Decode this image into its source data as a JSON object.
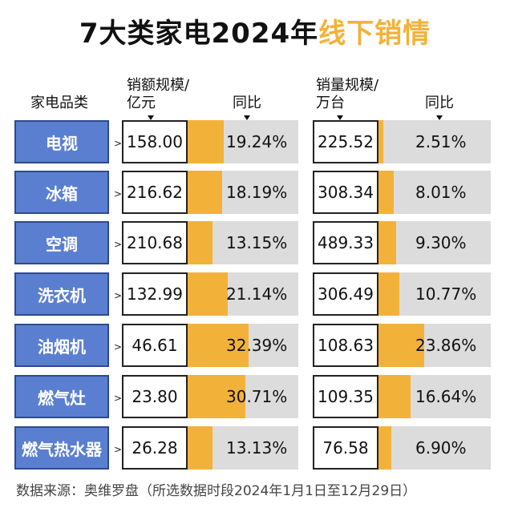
{
  "title": {
    "main": "7大类家电2024年",
    "highlight": "线下销情"
  },
  "headers": {
    "category": "家电品类",
    "sales_value": "销额规模/亿元",
    "sales_value_line1": "销额规模/",
    "sales_value_line2": "亿元",
    "yoy1": "同比",
    "sales_volume_line1": "销量规模/",
    "sales_volume_line2": "万台",
    "yoy2": "同比"
  },
  "footer": "数据来源：奥维罗盘（所选数据时段2024年1月1日至12月29日）",
  "chart_data": {
    "type": "table",
    "title": "7大类家电2024年线下销情",
    "categories": [
      "电视",
      "冰箱",
      "空调",
      "洗衣机",
      "油烟机",
      "燃气灶",
      "燃气热水器"
    ],
    "columns": [
      "销额规模/亿元",
      "同比",
      "销量规模/万台",
      "同比"
    ],
    "series": [
      {
        "name": "销额规模/亿元",
        "values": [
          158.0,
          216.62,
          210.68,
          132.99,
          46.61,
          23.8,
          26.28
        ]
      },
      {
        "name": "销额同比(%)",
        "values": [
          19.24,
          18.19,
          13.15,
          21.14,
          32.39,
          30.71,
          13.13
        ]
      },
      {
        "name": "销量规模/万台",
        "values": [
          225.52,
          308.34,
          489.33,
          306.49,
          108.63,
          109.35,
          76.58
        ]
      },
      {
        "name": "销量同比(%)",
        "values": [
          2.51,
          8.01,
          9.3,
          10.77,
          23.86,
          16.64,
          6.9
        ]
      }
    ],
    "display": {
      "sales_value": [
        "158.00",
        "216.62",
        "210.68",
        "132.99",
        "46.61",
        "23.80",
        "26.28"
      ],
      "sales_yoy": [
        "19.24%",
        "18.19%",
        "13.15%",
        "21.14%",
        "32.39%",
        "30.71%",
        "13.13%"
      ],
      "volume": [
        "225.52",
        "308.34",
        "489.33",
        "306.49",
        "108.63",
        "109.35",
        "76.58"
      ],
      "volume_yoy": [
        "2.51%",
        "8.01%",
        "9.30%",
        "10.77%",
        "23.86%",
        "16.64%",
        "6.90%"
      ]
    },
    "colors": {
      "category_fill": "#5b7fd0",
      "bar": "#f2b23a",
      "track": "#dcdcdc"
    }
  }
}
